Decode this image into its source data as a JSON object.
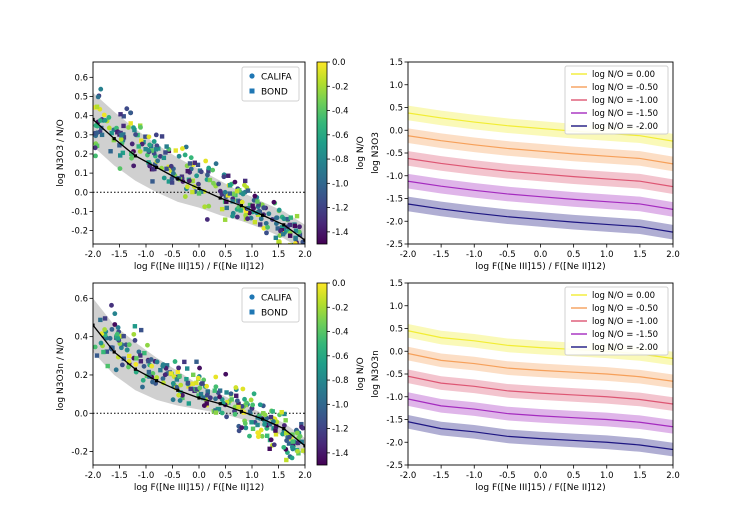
{
  "chart_data": [
    {
      "type": "scatter",
      "panel": "top-left",
      "xlabel": "log F([Ne III]15) / F([Ne II]12)",
      "ylabel": "log N3O3 / N/O",
      "xlim": [
        -2.0,
        2.0
      ],
      "ylim": [
        -0.27,
        0.68
      ],
      "xticks": [
        "-2.0",
        "-1.5",
        "-1.0",
        "-0.5",
        "0.0",
        "0.5",
        "1.0",
        "1.5",
        "2.0"
      ],
      "yticks": [
        "-0.2",
        "-0.1",
        "0.0",
        "0.1",
        "0.2",
        "0.3",
        "0.4",
        "0.5",
        "0.6"
      ],
      "legend": [
        "CALIFA",
        "BOND"
      ],
      "colorbar_label": "log N/O",
      "colorbar_range": [
        -1.5,
        0.0
      ],
      "colorbar_ticks": [
        "0.0",
        "-0.2",
        "-0.4",
        "-0.6",
        "-0.8",
        "-1.0",
        "-1.2",
        "-1.4"
      ],
      "reference_line_y": 0.0,
      "fit_line": {
        "x": [
          -2.0,
          -1.6,
          -1.2,
          -0.8,
          -0.4,
          0.0,
          0.4,
          0.8,
          1.2,
          1.6,
          2.0
        ],
        "y": [
          0.38,
          0.28,
          0.19,
          0.13,
          0.07,
          0.02,
          -0.03,
          -0.07,
          -0.12,
          -0.17,
          -0.25
        ]
      },
      "band": {
        "upper": [
          0.52,
          0.42,
          0.33,
          0.25,
          0.18,
          0.12,
          0.06,
          0.0,
          -0.05,
          -0.1,
          -0.17
        ],
        "lower": [
          0.24,
          0.14,
          0.06,
          0.0,
          -0.05,
          -0.08,
          -0.12,
          -0.15,
          -0.19,
          -0.24,
          -0.31
        ]
      },
      "trend": {
        "x0": -2.0,
        "y0": 0.38,
        "x1": 2.0,
        "y1": -0.24,
        "scatter": 0.09
      }
    },
    {
      "type": "line",
      "panel": "top-right",
      "xlabel": "log F([Ne III]15) / F([Ne II]12)",
      "ylabel": "log N3O3",
      "xlim": [
        -2.0,
        2.0
      ],
      "ylim": [
        -2.5,
        1.5
      ],
      "xticks": [
        "-2.0",
        "-1.5",
        "-1.0",
        "-0.5",
        "0.0",
        "0.5",
        "1.0",
        "1.5",
        "2.0"
      ],
      "yticks": [
        "-2.5",
        "-2.0",
        "-1.5",
        "-1.0",
        "-0.5",
        "0.0",
        "0.5",
        "1.0",
        "1.5"
      ],
      "x": [
        -2.0,
        -1.5,
        -1.0,
        -0.5,
        0.0,
        0.5,
        1.0,
        1.5,
        2.0
      ],
      "series": [
        {
          "name": "log N/O = 0.00",
          "color": "#f2ed33",
          "values": [
            0.38,
            0.27,
            0.18,
            0.1,
            0.04,
            -0.02,
            -0.07,
            -0.12,
            -0.24
          ],
          "spread": 0.16
        },
        {
          "name": "log N/O = -0.50",
          "color": "#f6a05a",
          "values": [
            -0.12,
            -0.23,
            -0.32,
            -0.4,
            -0.46,
            -0.52,
            -0.57,
            -0.62,
            -0.74
          ],
          "spread": 0.16
        },
        {
          "name": "log N/O = -1.00",
          "color": "#dd5673",
          "values": [
            -0.62,
            -0.73,
            -0.82,
            -0.9,
            -0.96,
            -1.02,
            -1.07,
            -1.12,
            -1.24
          ],
          "spread": 0.16
        },
        {
          "name": "log N/O = -1.50",
          "color": "#a42bbf",
          "values": [
            -1.12,
            -1.23,
            -1.32,
            -1.4,
            -1.46,
            -1.52,
            -1.57,
            -1.62,
            -1.74
          ],
          "spread": 0.16
        },
        {
          "name": "log N/O = -2.00",
          "color": "#1d1682",
          "values": [
            -1.62,
            -1.73,
            -1.82,
            -1.9,
            -1.96,
            -2.02,
            -2.07,
            -2.12,
            -2.24
          ],
          "spread": 0.16
        }
      ]
    },
    {
      "type": "scatter",
      "panel": "bottom-left",
      "xlabel": "log F([Ne III]15) / F([Ne II]12)",
      "ylabel": "log N3O3n / N/O",
      "xlim": [
        -2.0,
        2.0
      ],
      "ylim": [
        -0.27,
        0.68
      ],
      "xticks": [
        "-2.0",
        "-1.5",
        "-1.0",
        "-0.5",
        "0.0",
        "0.5",
        "1.0",
        "1.5",
        "2.0"
      ],
      "yticks": [
        "-0.2",
        "0.0",
        "0.2",
        "0.4",
        "0.6"
      ],
      "legend": [
        "CALIFA",
        "BOND"
      ],
      "colorbar_label": "log N/O",
      "colorbar_range": [
        -1.5,
        0.0
      ],
      "colorbar_ticks": [
        "0.0",
        "-0.2",
        "-0.4",
        "-0.6",
        "-0.8",
        "-1.0",
        "-1.2",
        "-1.4"
      ],
      "reference_line_y": 0.0,
      "fit_line": {
        "x": [
          -2.0,
          -1.6,
          -1.2,
          -0.8,
          -0.4,
          0.0,
          0.4,
          0.8,
          1.2,
          1.6,
          2.0
        ],
        "y": [
          0.46,
          0.32,
          0.23,
          0.17,
          0.12,
          0.08,
          0.05,
          0.01,
          -0.03,
          -0.08,
          -0.17
        ]
      },
      "band": {
        "upper": [
          0.6,
          0.46,
          0.37,
          0.29,
          0.22,
          0.15,
          0.1,
          0.05,
          0.0,
          -0.05,
          -0.13
        ],
        "lower": [
          0.32,
          0.2,
          0.12,
          0.07,
          0.04,
          0.02,
          0.0,
          -0.03,
          -0.07,
          -0.12,
          -0.22
        ]
      },
      "trend": {
        "x0": -2.0,
        "y0": 0.42,
        "x1": 2.0,
        "y1": -0.17,
        "scatter": 0.08
      }
    },
    {
      "type": "line",
      "panel": "bottom-right",
      "xlabel": "log F([Ne III]15) / F([Ne II]12)",
      "ylabel": "log N3O3n",
      "xlim": [
        -2.0,
        2.0
      ],
      "ylim": [
        -2.5,
        1.5
      ],
      "xticks": [
        "-2.0",
        "-1.5",
        "-1.0",
        "-0.5",
        "0.0",
        "0.5",
        "1.0",
        "1.5",
        "2.0"
      ],
      "yticks": [
        "-2.5",
        "-2.0",
        "-1.5",
        "-1.0",
        "-0.5",
        "0.0",
        "0.5",
        "1.0",
        "1.5"
      ],
      "x": [
        -2.0,
        -1.5,
        -1.0,
        -0.5,
        0.0,
        0.5,
        1.0,
        1.5,
        2.0
      ],
      "series": [
        {
          "name": "log N/O = 0.00",
          "color": "#f2ed33",
          "values": [
            0.45,
            0.3,
            0.23,
            0.13,
            0.08,
            0.04,
            0.0,
            -0.06,
            -0.16
          ],
          "spread": 0.15
        },
        {
          "name": "log N/O = -0.50",
          "color": "#f6a05a",
          "values": [
            -0.05,
            -0.2,
            -0.27,
            -0.37,
            -0.42,
            -0.46,
            -0.5,
            -0.56,
            -0.66
          ],
          "spread": 0.15
        },
        {
          "name": "log N/O = -1.00",
          "color": "#dd5673",
          "values": [
            -0.55,
            -0.7,
            -0.77,
            -0.87,
            -0.92,
            -0.96,
            -1.0,
            -1.06,
            -1.16
          ],
          "spread": 0.15
        },
        {
          "name": "log N/O = -1.50",
          "color": "#a42bbf",
          "values": [
            -1.05,
            -1.2,
            -1.27,
            -1.37,
            -1.42,
            -1.46,
            -1.5,
            -1.56,
            -1.66
          ],
          "spread": 0.15
        },
        {
          "name": "log N/O = -2.00",
          "color": "#1d1682",
          "values": [
            -1.55,
            -1.7,
            -1.77,
            -1.87,
            -1.92,
            -1.96,
            -2.0,
            -2.06,
            -2.16
          ],
          "spread": 0.15
        }
      ]
    }
  ]
}
